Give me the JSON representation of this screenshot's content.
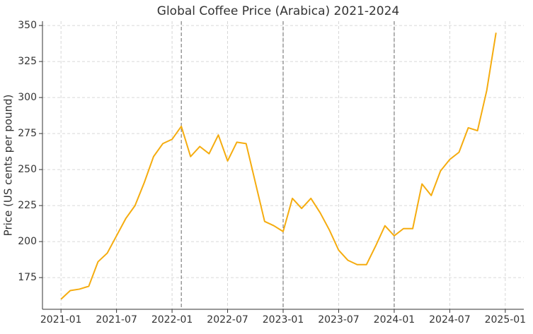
{
  "chart_data": {
    "type": "line",
    "title": "Global Coffee Price (Arabica) 2021-2024",
    "y_label": "Price (US cents per pound)",
    "x": [
      "2021-01",
      "2021-02",
      "2021-03",
      "2021-04",
      "2021-05",
      "2021-06",
      "2021-07",
      "2021-08",
      "2021-09",
      "2021-10",
      "2021-11",
      "2021-12",
      "2022-01",
      "2022-02",
      "2022-03",
      "2022-04",
      "2022-05",
      "2022-06",
      "2022-07",
      "2022-08",
      "2022-09",
      "2022-10",
      "2022-11",
      "2022-12",
      "2023-01",
      "2023-02",
      "2023-03",
      "2023-04",
      "2023-05",
      "2023-06",
      "2023-07",
      "2023-08",
      "2023-09",
      "2023-10",
      "2023-11",
      "2023-12",
      "2024-01",
      "2024-02",
      "2024-03",
      "2024-04",
      "2024-05",
      "2024-06",
      "2024-07",
      "2024-08",
      "2024-09",
      "2024-10",
      "2024-11",
      "2024-12"
    ],
    "series": [
      {
        "name": "Arabica",
        "color": "#f5ac0f",
        "values": [
          160,
          166,
          167,
          169,
          186,
          192,
          204,
          216,
          225,
          241,
          259,
          268,
          271,
          280,
          259,
          266,
          261,
          274,
          256,
          269,
          268,
          241,
          214,
          211,
          207,
          230,
          223,
          230,
          220,
          208,
          194,
          187,
          184,
          184,
          197,
          211,
          204,
          209,
          209,
          240,
          232,
          249,
          257,
          262,
          279,
          277,
          305,
          345
        ]
      }
    ],
    "xlim": [
      "2020-11",
      "2025-03"
    ],
    "xticks": [
      "2021-01",
      "2021-07",
      "2022-01",
      "2022-07",
      "2023-01",
      "2023-07",
      "2024-01",
      "2024-07",
      "2025-01"
    ],
    "ylim": [
      153,
      353
    ],
    "yticks": [
      175,
      200,
      225,
      250,
      275,
      300,
      325,
      350
    ],
    "vlines": [
      "2022-02",
      "2023-01",
      "2024-01"
    ],
    "grid": true
  }
}
